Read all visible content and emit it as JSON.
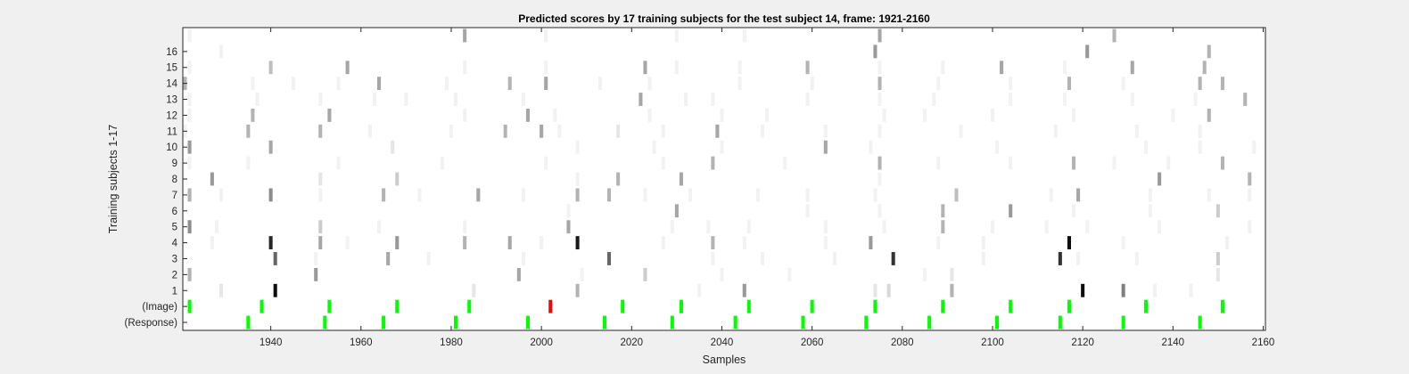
{
  "chart_data": {
    "type": "heatmap",
    "title": "Predicted scores by 17 training subjects for the test subject 14, frame: 1921-2160",
    "xlabel": "Samples",
    "ylabel": "Training subjects 1-17",
    "xlim": [
      1921,
      2160
    ],
    "xticks": [
      1940,
      1960,
      1980,
      2000,
      2020,
      2040,
      2060,
      2080,
      2100,
      2120,
      2140,
      2160
    ],
    "row_labels": [
      "(Response)",
      "(Image)",
      "1",
      "2",
      "3",
      "4",
      "5",
      "6",
      "7",
      "8",
      "9",
      "10",
      "11",
      "12",
      "13",
      "14",
      "15",
      "16",
      ""
    ],
    "colors": {
      "image_marker": "#00ff00",
      "response_marker": "#00ff00",
      "highlight": "#ff0000",
      "background": "#ffffff",
      "figure": "#f0f0f0"
    },
    "markers": {
      "response": [
        1935,
        1952,
        1965,
        1981,
        1997,
        2014,
        2029,
        2043,
        2058,
        2072,
        2086,
        2101,
        2115,
        2129,
        2146
      ],
      "image": [
        1922,
        1938,
        1953,
        1968,
        1984,
        2002,
        2018,
        2031,
        2046,
        2060,
        2074,
        2089,
        2104,
        2117,
        2134,
        2151
      ],
      "highlight_x": 2002
    },
    "cells": [
      {
        "row": "1",
        "marks": [
          [
            1929,
            0.1
          ],
          [
            1941,
            0.95
          ],
          [
            1985,
            0.1
          ],
          [
            2008,
            0.3
          ],
          [
            2035,
            0.05
          ],
          [
            2045,
            0.4
          ],
          [
            2074,
            0.1
          ],
          [
            2077,
            0.15
          ],
          [
            2091,
            0.3
          ],
          [
            2120,
            0.95
          ],
          [
            2129,
            0.5
          ],
          [
            2136,
            0.05
          ],
          [
            2144,
            0.05
          ]
        ]
      },
      {
        "row": "2",
        "marks": [
          [
            1922,
            0.3
          ],
          [
            1950,
            0.4
          ],
          [
            1995,
            0.35
          ],
          [
            2009,
            0.05
          ],
          [
            2023,
            0.2
          ],
          [
            2040,
            0.05
          ],
          [
            2055,
            0.05
          ],
          [
            2085,
            0.05
          ],
          [
            2091,
            0.1
          ],
          [
            2150,
            0.1
          ]
        ]
      },
      {
        "row": "3",
        "marks": [
          [
            1941,
            0.6
          ],
          [
            1950,
            0.05
          ],
          [
            1966,
            0.35
          ],
          [
            1975,
            0.05
          ],
          [
            1996,
            0.05
          ],
          [
            2015,
            0.6
          ],
          [
            2038,
            0.05
          ],
          [
            2049,
            0.05
          ],
          [
            2065,
            0.05
          ],
          [
            2078,
            0.8
          ],
          [
            2098,
            0.05
          ],
          [
            2115,
            0.8
          ],
          [
            2119,
            0.05
          ],
          [
            2132,
            0.05
          ],
          [
            2150,
            0.2
          ]
        ]
      },
      {
        "row": "4",
        "marks": [
          [
            1927,
            0.05
          ],
          [
            1940,
            0.85
          ],
          [
            1951,
            0.35
          ],
          [
            1957,
            0.05
          ],
          [
            1968,
            0.4
          ],
          [
            1983,
            0.3
          ],
          [
            1993,
            0.35
          ],
          [
            2000,
            0.05
          ],
          [
            2008,
            0.9
          ],
          [
            2027,
            0.05
          ],
          [
            2038,
            0.3
          ],
          [
            2045,
            0.05
          ],
          [
            2063,
            0.05
          ],
          [
            2073,
            0.4
          ],
          [
            2088,
            0.05
          ],
          [
            2098,
            0.05
          ],
          [
            2117,
            0.95
          ],
          [
            2129,
            0.05
          ],
          [
            2152,
            0.05
          ]
        ]
      },
      {
        "row": "5",
        "marks": [
          [
            1922,
            0.45
          ],
          [
            1928,
            0.05
          ],
          [
            1951,
            0.2
          ],
          [
            1964,
            0.05
          ],
          [
            1983,
            0.05
          ],
          [
            2006,
            0.35
          ],
          [
            2029,
            0.05
          ],
          [
            2037,
            0.05
          ],
          [
            2046,
            0.05
          ],
          [
            2063,
            0.05
          ],
          [
            2076,
            0.05
          ],
          [
            2089,
            0.3
          ],
          [
            2100,
            0.05
          ],
          [
            2112,
            0.05
          ],
          [
            2121,
            0.05
          ],
          [
            2137,
            0.05
          ],
          [
            2157,
            0.05
          ]
        ]
      },
      {
        "row": "6",
        "marks": [
          [
            2006,
            0.05
          ],
          [
            2030,
            0.35
          ],
          [
            2059,
            0.05
          ],
          [
            2075,
            0.05
          ],
          [
            2089,
            0.3
          ],
          [
            2104,
            0.4
          ],
          [
            2118,
            0.05
          ],
          [
            2135,
            0.05
          ],
          [
            2150,
            0.2
          ]
        ]
      },
      {
        "row": "7",
        "marks": [
          [
            1922,
            0.3
          ],
          [
            1929,
            0.05
          ],
          [
            1940,
            0.45
          ],
          [
            1951,
            0.05
          ],
          [
            1965,
            0.3
          ],
          [
            1973,
            0.05
          ],
          [
            1986,
            0.35
          ],
          [
            1996,
            0.05
          ],
          [
            2008,
            0.3
          ],
          [
            2015,
            0.3
          ],
          [
            2023,
            0.05
          ],
          [
            2033,
            0.05
          ],
          [
            2048,
            0.05
          ],
          [
            2059,
            0.05
          ],
          [
            2074,
            0.05
          ],
          [
            2092,
            0.25
          ],
          [
            2113,
            0.05
          ],
          [
            2119,
            0.35
          ],
          [
            2135,
            0.05
          ],
          [
            2148,
            0.05
          ],
          [
            2157,
            0.05
          ]
        ]
      },
      {
        "row": "8",
        "marks": [
          [
            1927,
            0.4
          ],
          [
            1951,
            0.1
          ],
          [
            1968,
            0.2
          ],
          [
            2008,
            0.05
          ],
          [
            2017,
            0.3
          ],
          [
            2031,
            0.35
          ],
          [
            2075,
            0.05
          ],
          [
            2137,
            0.4
          ],
          [
            2157,
            0.3
          ]
        ]
      },
      {
        "row": "9",
        "marks": [
          [
            1922,
            0.05
          ],
          [
            1935,
            0.05
          ],
          [
            1955,
            0.05
          ],
          [
            1978,
            0.05
          ],
          [
            2001,
            0.05
          ],
          [
            2027,
            0.05
          ],
          [
            2038,
            0.3
          ],
          [
            2054,
            0.05
          ],
          [
            2075,
            0.3
          ],
          [
            2088,
            0.05
          ],
          [
            2104,
            0.05
          ],
          [
            2118,
            0.3
          ],
          [
            2127,
            0.05
          ],
          [
            2139,
            0.05
          ],
          [
            2151,
            0.3
          ]
        ]
      },
      {
        "row": "10",
        "marks": [
          [
            1922,
            0.4
          ],
          [
            1940,
            0.35
          ],
          [
            1967,
            0.1
          ],
          [
            2008,
            0.05
          ],
          [
            2025,
            0.05
          ],
          [
            2040,
            0.05
          ],
          [
            2063,
            0.35
          ],
          [
            2073,
            0.05
          ],
          [
            2101,
            0.05
          ],
          [
            2134,
            0.05
          ],
          [
            2146,
            0.05
          ],
          [
            2158,
            0.05
          ]
        ]
      },
      {
        "row": "11",
        "marks": [
          [
            1921,
            0.05
          ],
          [
            1935,
            0.3
          ],
          [
            1951,
            0.3
          ],
          [
            1962,
            0.05
          ],
          [
            1980,
            0.05
          ],
          [
            1992,
            0.3
          ],
          [
            2000,
            0.35
          ],
          [
            2004,
            0.05
          ],
          [
            2017,
            0.1
          ],
          [
            2027,
            0.05
          ],
          [
            2039,
            0.35
          ],
          [
            2049,
            0.05
          ],
          [
            2063,
            0.05
          ],
          [
            2075,
            0.05
          ],
          [
            2093,
            0.05
          ],
          [
            2114,
            0.05
          ],
          [
            2132,
            0.05
          ],
          [
            2146,
            0.05
          ]
        ]
      },
      {
        "row": "12",
        "marks": [
          [
            1922,
            0.05
          ],
          [
            1936,
            0.3
          ],
          [
            1953,
            0.35
          ],
          [
            1983,
            0.05
          ],
          [
            1997,
            0.35
          ],
          [
            2003,
            0.05
          ],
          [
            2024,
            0.05
          ],
          [
            2040,
            0.05
          ],
          [
            2050,
            0.05
          ],
          [
            2076,
            0.05
          ],
          [
            2085,
            0.05
          ],
          [
            2100,
            0.05
          ],
          [
            2118,
            0.05
          ],
          [
            2140,
            0.05
          ],
          [
            2148,
            0.3
          ]
        ]
      },
      {
        "row": "13",
        "marks": [
          [
            1922,
            0.05
          ],
          [
            1937,
            0.05
          ],
          [
            1951,
            0.05
          ],
          [
            1963,
            0.05
          ],
          [
            1970,
            0.05
          ],
          [
            1981,
            0.05
          ],
          [
            1996,
            0.05
          ],
          [
            2022,
            0.35
          ],
          [
            2032,
            0.05
          ],
          [
            2038,
            0.05
          ],
          [
            2059,
            0.05
          ],
          [
            2075,
            0.05
          ],
          [
            2087,
            0.05
          ],
          [
            2104,
            0.05
          ],
          [
            2116,
            0.05
          ],
          [
            2131,
            0.05
          ],
          [
            2145,
            0.05
          ],
          [
            2156,
            0.3
          ]
        ]
      },
      {
        "row": "14",
        "marks": [
          [
            1921,
            0.3
          ],
          [
            1936,
            0.05
          ],
          [
            1945,
            0.05
          ],
          [
            1955,
            0.05
          ],
          [
            1964,
            0.35
          ],
          [
            1979,
            0.05
          ],
          [
            1993,
            0.3
          ],
          [
            2001,
            0.35
          ],
          [
            2013,
            0.05
          ],
          [
            2024,
            0.05
          ],
          [
            2044,
            0.05
          ],
          [
            2060,
            0.05
          ],
          [
            2075,
            0.3
          ],
          [
            2088,
            0.05
          ],
          [
            2104,
            0.05
          ],
          [
            2117,
            0.3
          ],
          [
            2129,
            0.05
          ],
          [
            2146,
            0.3
          ],
          [
            2151,
            0.3
          ]
        ]
      },
      {
        "row": "15",
        "marks": [
          [
            1922,
            0.05
          ],
          [
            1940,
            0.25
          ],
          [
            1957,
            0.35
          ],
          [
            1983,
            0.05
          ],
          [
            2001,
            0.05
          ],
          [
            2023,
            0.35
          ],
          [
            2030,
            0.05
          ],
          [
            2044,
            0.05
          ],
          [
            2059,
            0.3
          ],
          [
            2075,
            0.05
          ],
          [
            2089,
            0.05
          ],
          [
            2102,
            0.35
          ],
          [
            2116,
            0.05
          ],
          [
            2131,
            0.35
          ],
          [
            2147,
            0.3
          ]
        ]
      },
      {
        "row": "16",
        "marks": [
          [
            1929,
            0.05
          ],
          [
            2074,
            0.4
          ],
          [
            2121,
            0.4
          ],
          [
            2148,
            0.3
          ]
        ]
      },
      {
        "row": "",
        "marks": [
          [
            1922,
            0.05
          ],
          [
            1983,
            0.35
          ],
          [
            2001,
            0.05
          ],
          [
            2030,
            0.05
          ],
          [
            2045,
            0.05
          ],
          [
            2075,
            0.35
          ],
          [
            2127,
            0.3
          ]
        ]
      }
    ]
  }
}
